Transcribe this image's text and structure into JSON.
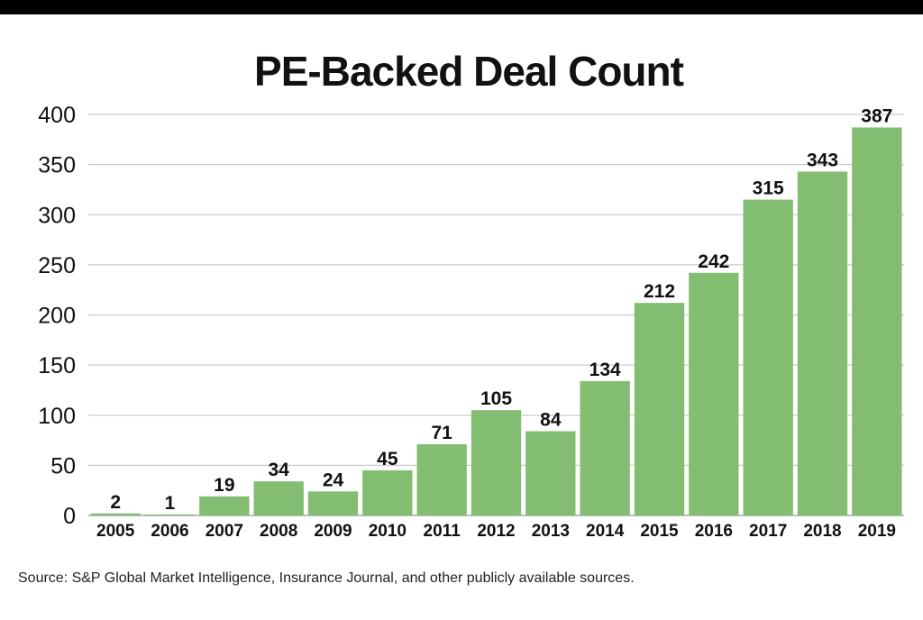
{
  "chart_data": {
    "type": "bar",
    "title": "PE-Backed Deal Count",
    "categories": [
      "2005",
      "2006",
      "2007",
      "2008",
      "2009",
      "2010",
      "2011",
      "2012",
      "2013",
      "2014",
      "2015",
      "2016",
      "2017",
      "2018",
      "2019"
    ],
    "values": [
      2,
      1,
      19,
      34,
      24,
      45,
      71,
      105,
      84,
      134,
      212,
      242,
      315,
      343,
      387
    ],
    "data_labels": [
      "2",
      "1",
      "19",
      "34",
      "24",
      "45",
      "71",
      "105",
      "84",
      "134",
      "212",
      "242",
      "315",
      "343",
      "387"
    ],
    "ylim": [
      0,
      400
    ],
    "yticks": [
      0,
      50,
      100,
      150,
      200,
      250,
      300,
      350,
      400
    ],
    "grid": true,
    "legend": "none",
    "bar_color": "#82bd72",
    "xlabel": "",
    "ylabel": ""
  },
  "source_note": "Source:  S&P Global Market Intelligence, Insurance Journal, and other publicly available sources."
}
